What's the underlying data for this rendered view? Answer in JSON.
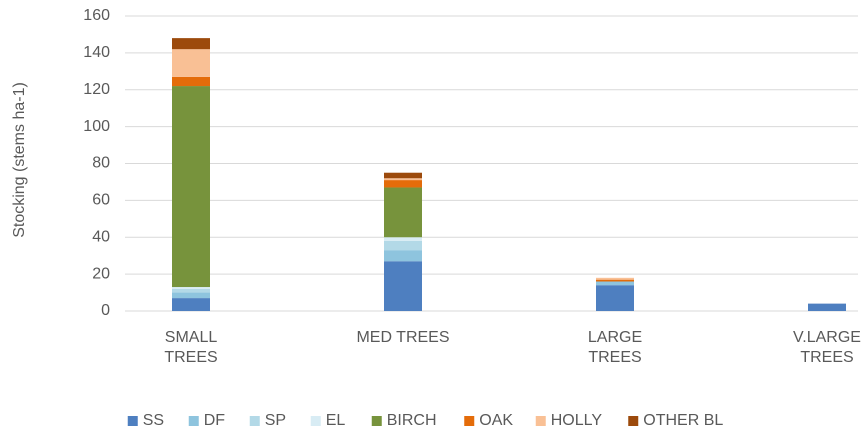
{
  "chart_data": {
    "type": "stacked_bar",
    "y_label": "Stocking (stems ha-1)",
    "categories": [
      "SMALL TREES",
      "MED TREES",
      "LARGE TREES",
      "V.LARGE TREES"
    ],
    "series": [
      {
        "name": "SS",
        "color": "#4e7fc0",
        "values": [
          7,
          27,
          14,
          4
        ]
      },
      {
        "name": "DF",
        "color": "#8ec4de",
        "values": [
          3,
          6,
          2,
          0
        ]
      },
      {
        "name": "SP",
        "color": "#b3d9e7",
        "values": [
          2,
          5,
          0,
          0
        ]
      },
      {
        "name": "EL",
        "color": "#d8ecf4",
        "values": [
          1,
          2,
          0,
          0
        ]
      },
      {
        "name": "BIRCH",
        "color": "#77933c",
        "values": [
          109,
          27,
          0,
          0
        ]
      },
      {
        "name": "OAK",
        "color": "#e46c0a",
        "values": [
          5,
          4,
          1,
          0
        ]
      },
      {
        "name": "HOLLY",
        "color": "#f9c095",
        "values": [
          15,
          1,
          1,
          0
        ]
      },
      {
        "name": "OTHER BL",
        "color": "#9c4a0c",
        "values": [
          6,
          3,
          0,
          0
        ]
      }
    ],
    "ylim": [
      0,
      160
    ],
    "yticks": [
      0,
      20,
      40,
      60,
      80,
      100,
      120,
      140,
      160
    ],
    "grid": true,
    "legend": "bottom"
  }
}
